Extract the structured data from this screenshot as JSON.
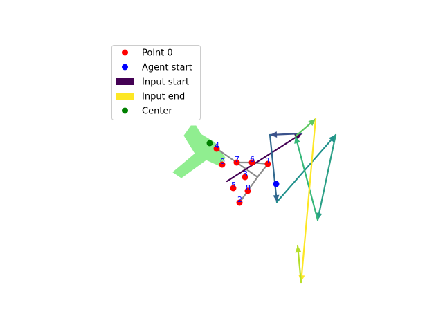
{
  "chart_data": {
    "type": "scatter",
    "title": "",
    "xlabel": "",
    "ylabel": "",
    "axes_visible": false,
    "grid": false,
    "legend_position": "upper-left",
    "legend": [
      {
        "label": "Point 0",
        "kind": "dot",
        "color": "#ff0000"
      },
      {
        "label": "Agent start",
        "kind": "dot",
        "color": "#0000ff"
      },
      {
        "label": "Input start",
        "kind": "bar",
        "color": "#440154"
      },
      {
        "label": "Input end",
        "kind": "bar",
        "color": "#fde725"
      },
      {
        "label": "Center",
        "kind": "dot",
        "color": "#008000"
      }
    ],
    "colors": {
      "point": "#ff0000",
      "agent": "#0000ff",
      "center": "#008000",
      "link": "#8c8c8c",
      "shape": "#90ee90",
      "label": "#0000ff"
    },
    "view": {
      "xlim": [
        0,
        640
      ],
      "ylim": [
        480,
        0
      ]
    },
    "shape_polygon": [
      [
        276,
        182
      ],
      [
        283,
        182
      ],
      [
        290,
        194
      ],
      [
        310,
        206
      ],
      [
        325,
        228
      ],
      [
        318,
        240
      ],
      [
        298,
        231
      ],
      [
        262,
        257
      ],
      [
        250,
        249
      ],
      [
        282,
        222
      ],
      [
        266,
        196
      ]
    ],
    "center": {
      "x": 303,
      "y": 207
    },
    "agent_start": {
      "x": 399,
      "y": 266
    },
    "points": [
      {
        "label": "0",
        "x": 321,
        "y": 238
      },
      {
        "label": "1",
        "x": 387,
        "y": 237
      },
      {
        "label": "2",
        "x": 346,
        "y": 293
      },
      {
        "label": "3",
        "x": 354,
        "y": 256
      },
      {
        "label": "4",
        "x": 313,
        "y": 215
      },
      {
        "label": "5",
        "x": 337,
        "y": 272
      },
      {
        "label": "6",
        "x": 364,
        "y": 235
      },
      {
        "label": "7",
        "x": 342,
        "y": 235
      },
      {
        "label": "8",
        "x": 358,
        "y": 276
      }
    ],
    "links": [
      [
        [
          313,
          215
        ],
        [
          342,
          235
        ]
      ],
      [
        [
          342,
          235
        ],
        [
          364,
          235
        ]
      ],
      [
        [
          364,
          235
        ],
        [
          387,
          237
        ]
      ],
      [
        [
          342,
          235
        ],
        [
          372,
          256
        ]
      ],
      [
        [
          387,
          237
        ],
        [
          372,
          256
        ]
      ],
      [
        [
          372,
          256
        ],
        [
          358,
          276
        ]
      ],
      [
        [
          358,
          276
        ],
        [
          346,
          293
        ]
      ]
    ],
    "input_path": [
      [
        328,
        262
      ],
      [
        436,
        193
      ],
      [
        390,
        195
      ],
      [
        400,
        292
      ],
      [
        485,
        195
      ],
      [
        459,
        318
      ],
      [
        427,
        197
      ],
      [
        456,
        172
      ],
      [
        435,
        408
      ],
      [
        430,
        355
      ]
    ],
    "path_colors": [
      "#440154",
      "#3b528b",
      "#31688e",
      "#21918c",
      "#2a9f86",
      "#35b779",
      "#5ec962",
      "#fde725",
      "#b5de2b"
    ]
  }
}
